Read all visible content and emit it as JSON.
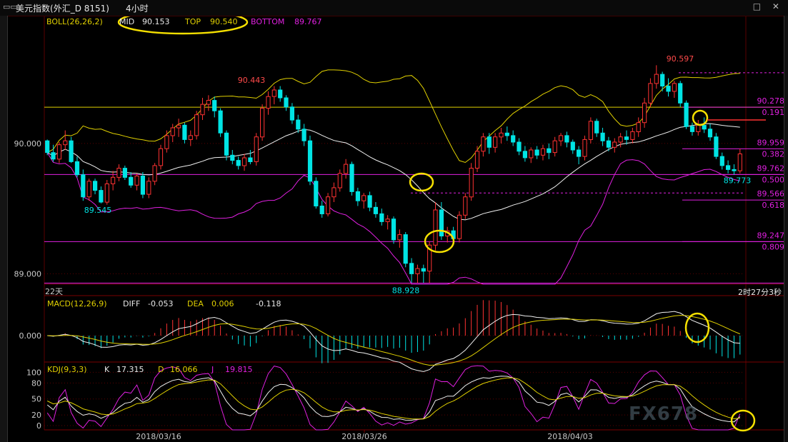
{
  "window": {
    "menu_glyph": "▭▭",
    "symbol": "美元指数",
    "market": "(外汇_D 8151)",
    "period": "4小时",
    "icons": "□ ✕"
  },
  "boll_header": {
    "name": "BOLL(26,26,2)",
    "mid_label": "MID",
    "mid_value": "90.153",
    "top_label": "TOP",
    "top_value": "90.540",
    "bottom_label": "BOTTOM",
    "bottom_value": "89.767"
  },
  "macd_header": {
    "name": "MACD(12,26,9)",
    "diff_label": "DIFF",
    "diff_value": "-0.053",
    "dea_label": "DEA",
    "dea_value": "0.006",
    "macd_value": "-0.118"
  },
  "kdj_header": {
    "name": "KDJ(9,3,3)",
    "k_label": "K",
    "k_value": "17.315",
    "d_label": "D",
    "d_value": "16.066",
    "j_label": "J",
    "j_value": "19.815"
  },
  "left_marker": "22天",
  "countdown": "2时27分3秒",
  "watermark": "FX678",
  "colors": {
    "up": "#ff3232",
    "down": "#00e4e4",
    "boll_mid": "#f0f0f0",
    "boll_top": "#e0d000",
    "boll_bottom": "#e020e0",
    "fib": "#e020e0",
    "annot": "#f5e000",
    "grid": "#5a0000"
  },
  "chart_data": {
    "type": "candlestick",
    "instrument": "美元指数",
    "interval": "4小时",
    "x_ticks": [
      "2018/03/16",
      "2018/03/26",
      "2018/04/03"
    ],
    "y_ticks": [
      "90.000",
      "89.000"
    ],
    "ylim": [
      88.92,
      90.98
    ],
    "price_labels": [
      {
        "label": "90.597",
        "value": 90.597
      },
      {
        "label": "90.443",
        "value": 90.443
      },
      {
        "label": "89.545",
        "value": 89.545
      },
      {
        "label": "88.928",
        "value": 88.928
      },
      {
        "label": "89.773",
        "value": 89.773
      }
    ],
    "fib_levels": [
      {
        "value": 90.278,
        "ratio": "0.191"
      },
      {
        "value": 89.959,
        "ratio": "0.382"
      },
      {
        "value": 89.762,
        "ratio": "0.500"
      },
      {
        "value": 89.566,
        "ratio": "0.618"
      },
      {
        "value": 89.247,
        "ratio": "0.809"
      }
    ],
    "fib_value_labels": [
      "90.278",
      "89.959",
      "89.762",
      "89.566",
      "89.247"
    ],
    "horizontal_lines": [
      {
        "value": 90.278,
        "color": "#e0d000"
      },
      {
        "value": 89.762,
        "color": "#e020e0"
      },
      {
        "value": 89.247,
        "color": "#e020e0"
      },
      {
        "value": 88.928,
        "color": "#e020e0"
      }
    ],
    "candles": [
      [
        90.02,
        90.03,
        89.91,
        89.93
      ],
      [
        89.93,
        89.99,
        89.86,
        89.88
      ],
      [
        89.88,
        90.01,
        89.85,
        89.99
      ],
      [
        89.99,
        90.1,
        89.95,
        90.02
      ],
      [
        90.02,
        90.05,
        89.85,
        89.86
      ],
      [
        89.86,
        89.9,
        89.74,
        89.76
      ],
      [
        89.76,
        89.8,
        89.56,
        89.59
      ],
      [
        89.59,
        89.73,
        89.56,
        89.71
      ],
      [
        89.71,
        89.73,
        89.61,
        89.64
      ],
      [
        89.64,
        89.67,
        89.54,
        89.55
      ],
      [
        89.55,
        89.72,
        89.53,
        89.69
      ],
      [
        89.69,
        89.79,
        89.64,
        89.74
      ],
      [
        89.74,
        89.84,
        89.71,
        89.81
      ],
      [
        89.81,
        89.83,
        89.72,
        89.74
      ],
      [
        89.74,
        89.78,
        89.66,
        89.68
      ],
      [
        89.68,
        89.77,
        89.64,
        89.75
      ],
      [
        89.75,
        89.78,
        89.58,
        89.61
      ],
      [
        89.61,
        89.74,
        89.58,
        89.71
      ],
      [
        89.71,
        89.85,
        89.68,
        89.83
      ],
      [
        89.83,
        89.99,
        89.8,
        89.96
      ],
      [
        89.96,
        90.1,
        89.93,
        90.06
      ],
      [
        90.06,
        90.15,
        90.01,
        90.12
      ],
      [
        90.12,
        90.19,
        90.05,
        90.14
      ],
      [
        90.14,
        90.16,
        90.0,
        90.03
      ],
      [
        90.03,
        90.1,
        89.98,
        90.06
      ],
      [
        90.06,
        90.25,
        90.03,
        90.22
      ],
      [
        90.22,
        90.35,
        90.18,
        90.3
      ],
      [
        90.3,
        90.37,
        90.25,
        90.33
      ],
      [
        90.33,
        90.36,
        90.2,
        90.25
      ],
      [
        90.25,
        90.27,
        90.05,
        90.08
      ],
      [
        90.08,
        90.1,
        89.87,
        89.91
      ],
      [
        89.91,
        89.95,
        89.84,
        89.87
      ],
      [
        89.87,
        89.9,
        89.8,
        89.83
      ],
      [
        89.83,
        89.92,
        89.79,
        89.89
      ],
      [
        89.89,
        89.95,
        89.84,
        89.86
      ],
      [
        89.86,
        90.08,
        89.83,
        90.05
      ],
      [
        90.05,
        90.3,
        90.02,
        90.27
      ],
      [
        90.27,
        90.4,
        90.22,
        90.36
      ],
      [
        90.36,
        90.44,
        90.3,
        90.41
      ],
      [
        90.41,
        90.44,
        90.32,
        90.35
      ],
      [
        90.35,
        90.37,
        90.25,
        90.28
      ],
      [
        90.28,
        90.31,
        90.15,
        90.18
      ],
      [
        90.18,
        90.22,
        90.08,
        90.11
      ],
      [
        90.11,
        90.15,
        89.98,
        90.02
      ],
      [
        90.02,
        90.06,
        89.68,
        89.71
      ],
      [
        89.71,
        89.74,
        89.5,
        89.52
      ],
      [
        89.52,
        89.56,
        89.43,
        89.46
      ],
      [
        89.46,
        89.62,
        89.44,
        89.59
      ],
      [
        89.59,
        89.7,
        89.55,
        89.66
      ],
      [
        89.66,
        89.8,
        89.63,
        89.77
      ],
      [
        89.77,
        89.88,
        89.73,
        89.84
      ],
      [
        89.84,
        89.86,
        89.6,
        89.63
      ],
      [
        89.63,
        89.66,
        89.52,
        89.56
      ],
      [
        89.56,
        89.62,
        89.5,
        89.6
      ],
      [
        89.6,
        89.63,
        89.48,
        89.51
      ],
      [
        89.51,
        89.55,
        89.43,
        89.46
      ],
      [
        89.46,
        89.5,
        89.37,
        89.4
      ],
      [
        89.4,
        89.45,
        89.34,
        89.42
      ],
      [
        89.42,
        89.44,
        89.23,
        89.26
      ],
      [
        89.26,
        89.34,
        89.2,
        89.3
      ],
      [
        89.3,
        89.32,
        89.05,
        89.08
      ],
      [
        89.08,
        89.12,
        88.93,
        89.0
      ],
      [
        89.0,
        89.07,
        88.93,
        89.04
      ],
      [
        89.04,
        89.07,
        88.93,
        89.02
      ],
      [
        89.02,
        89.25,
        88.93,
        89.22
      ],
      [
        89.22,
        89.55,
        89.18,
        89.49
      ],
      [
        89.49,
        89.55,
        89.26,
        89.29
      ],
      [
        89.29,
        89.36,
        89.24,
        89.33
      ],
      [
        89.33,
        89.36,
        89.24,
        89.27
      ],
      [
        89.27,
        89.48,
        89.24,
        89.45
      ],
      [
        89.45,
        89.62,
        89.42,
        89.59
      ],
      [
        89.59,
        89.85,
        89.56,
        89.81
      ],
      [
        89.81,
        89.98,
        89.78,
        89.94
      ],
      [
        89.94,
        90.08,
        89.9,
        90.05
      ],
      [
        90.05,
        90.08,
        89.92,
        89.97
      ],
      [
        89.97,
        90.08,
        89.93,
        90.05
      ],
      [
        90.05,
        90.12,
        90.0,
        90.08
      ],
      [
        90.08,
        90.13,
        90.02,
        90.06
      ],
      [
        90.06,
        90.1,
        89.98,
        90.01
      ],
      [
        90.01,
        90.04,
        89.91,
        89.94
      ],
      [
        89.94,
        89.98,
        89.86,
        89.89
      ],
      [
        89.89,
        89.97,
        89.85,
        89.95
      ],
      [
        89.95,
        89.98,
        89.88,
        89.91
      ],
      [
        89.91,
        89.99,
        89.87,
        89.96
      ],
      [
        89.96,
        90.0,
        89.88,
        89.93
      ],
      [
        89.93,
        90.05,
        89.9,
        90.02
      ],
      [
        90.02,
        90.08,
        89.98,
        90.06
      ],
      [
        90.06,
        90.09,
        89.97,
        90.01
      ],
      [
        90.01,
        90.03,
        89.92,
        89.95
      ],
      [
        89.95,
        89.98,
        89.84,
        89.9
      ],
      [
        89.9,
        90.06,
        89.87,
        90.03
      ],
      [
        90.03,
        90.2,
        90.0,
        90.17
      ],
      [
        90.17,
        90.19,
        90.05,
        90.08
      ],
      [
        90.08,
        90.12,
        89.98,
        90.02
      ],
      [
        90.02,
        90.05,
        89.94,
        89.97
      ],
      [
        89.97,
        90.04,
        89.93,
        90.01
      ],
      [
        90.01,
        90.08,
        89.97,
        90.05
      ],
      [
        90.05,
        90.1,
        89.99,
        90.03
      ],
      [
        90.03,
        90.12,
        90.0,
        90.09
      ],
      [
        90.09,
        90.2,
        90.05,
        90.16
      ],
      [
        90.16,
        90.35,
        90.12,
        90.31
      ],
      [
        90.31,
        90.5,
        90.28,
        90.46
      ],
      [
        90.46,
        90.6,
        90.42,
        90.53
      ],
      [
        90.53,
        90.55,
        90.4,
        90.44
      ],
      [
        90.44,
        90.5,
        90.36,
        90.4
      ],
      [
        90.4,
        90.48,
        90.35,
        90.46
      ],
      [
        90.46,
        90.48,
        90.28,
        90.31
      ],
      [
        90.31,
        90.33,
        90.11,
        90.13
      ],
      [
        90.13,
        90.16,
        90.06,
        90.09
      ],
      [
        90.09,
        90.18,
        90.06,
        90.14
      ],
      [
        90.14,
        90.2,
        90.08,
        90.11
      ],
      [
        90.11,
        90.15,
        90.02,
        90.05
      ],
      [
        90.05,
        90.08,
        89.88,
        89.9
      ],
      [
        89.9,
        89.93,
        89.8,
        89.83
      ],
      [
        89.83,
        89.87,
        89.77,
        89.8
      ],
      [
        89.8,
        89.84,
        89.76,
        89.79
      ],
      [
        89.79,
        89.96,
        89.77,
        89.92
      ]
    ],
    "macd": {
      "ylim": [
        -0.21,
        0.21
      ],
      "y_ticks": [
        "0.000"
      ],
      "diff_end": -0.053,
      "dea_end": 0.006,
      "macd_end": -0.118
    },
    "kdj": {
      "ylim": [
        -8,
        118
      ],
      "y_ticks": [
        "100",
        "80",
        "50",
        "20",
        "0"
      ],
      "k_end": 17.315,
      "d_end": 16.066,
      "j_end": 19.815
    }
  }
}
